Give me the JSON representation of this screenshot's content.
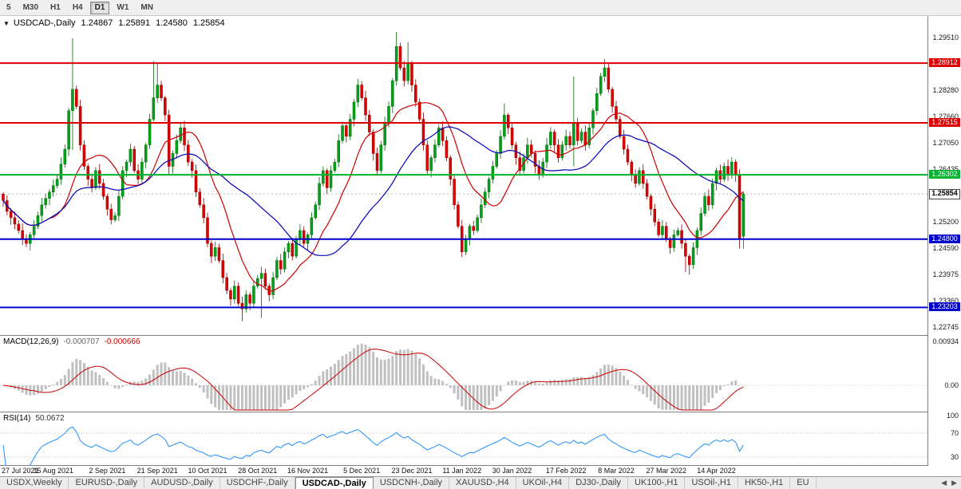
{
  "toolbar": {
    "timeframes": [
      {
        "label": "5",
        "active": false
      },
      {
        "label": "M30",
        "active": false
      },
      {
        "label": "H1",
        "active": false
      },
      {
        "label": "H4",
        "active": false
      },
      {
        "label": "D1",
        "active": true
      },
      {
        "label": "W1",
        "active": false
      },
      {
        "label": "MN",
        "active": false
      }
    ]
  },
  "legend": {
    "symbol": "USDCAD-,Daily"
  },
  "chart_data": {
    "type": "candlestick",
    "symbol": "USDCAD-",
    "timeframe": "Daily",
    "ohlc_current": {
      "open": "1.24867",
      "high": "1.25891",
      "low": "1.24580",
      "close": "1.25854"
    },
    "current_price": {
      "label": "1.25854",
      "price": 1.25854
    },
    "first_open": 1.2585,
    "default_wick": 0.0012,
    "closes": [
      1.257,
      1.2545,
      1.253,
      1.2515,
      1.25,
      1.248,
      1.247,
      1.249,
      1.251,
      1.2535,
      1.256,
      1.2575,
      1.259,
      1.2605,
      1.262,
      1.2655,
      1.269,
      1.278,
      1.283,
      1.279,
      1.27,
      1.265,
      1.262,
      1.26,
      1.264,
      1.261,
      1.258,
      1.255,
      1.2525,
      1.2535,
      1.258,
      1.264,
      1.266,
      1.269,
      1.264,
      1.262,
      1.266,
      1.27,
      1.276,
      1.281,
      1.284,
      1.281,
      1.277,
      1.265,
      1.268,
      1.271,
      1.274,
      1.27,
      1.266,
      1.264,
      1.259,
      1.256,
      1.253,
      1.247,
      1.244,
      1.246,
      1.243,
      1.239,
      1.236,
      1.234,
      1.237,
      1.233,
      1.2317,
      1.235,
      1.233,
      1.237,
      1.2388,
      1.24,
      1.237,
      1.235,
      1.239,
      1.243,
      1.241,
      1.245,
      1.247,
      1.244,
      1.248,
      1.25,
      1.247,
      1.249,
      1.253,
      1.256,
      1.261,
      1.264,
      1.26,
      1.264,
      1.266,
      1.271,
      1.2745,
      1.272,
      1.276,
      1.28,
      1.284,
      1.281,
      1.277,
      1.273,
      1.268,
      1.264,
      1.27,
      1.275,
      1.279,
      1.285,
      1.293,
      1.288,
      1.285,
      1.289,
      1.284,
      1.28,
      1.276,
      1.27,
      1.264,
      1.267,
      1.27,
      1.274,
      1.271,
      1.267,
      1.262,
      1.256,
      1.251,
      1.245,
      1.248,
      1.251,
      1.25,
      1.253,
      1.256,
      1.259,
      1.262,
      1.265,
      1.268,
      1.272,
      1.277,
      1.274,
      1.27,
      1.267,
      1.264,
      1.267,
      1.27,
      1.268,
      1.265,
      1.263,
      1.266,
      1.27,
      1.273,
      1.27,
      1.267,
      1.27,
      1.272,
      1.27,
      1.275,
      1.271,
      1.273,
      1.27,
      1.274,
      1.278,
      1.282,
      1.286,
      1.288,
      1.283,
      1.279,
      1.276,
      1.272,
      1.269,
      1.266,
      1.263,
      1.261,
      1.264,
      1.261,
      1.258,
      1.255,
      1.252,
      1.249,
      1.251,
      1.248,
      1.246,
      1.249,
      1.25,
      1.247,
      1.244,
      1.242,
      1.246,
      1.25,
      1.254,
      1.258,
      1.256,
      1.261,
      1.264,
      1.262,
      1.265,
      1.263,
      1.266,
      1.263,
      1.248,
      1.25854
    ],
    "overrides": {
      "18": {
        "h": 1.2949,
        "l": 1.2688
      },
      "39": {
        "h": 1.2896
      },
      "40": {
        "h": 1.289
      },
      "43": {
        "l": 1.263
      },
      "62": {
        "l": 1.2288
      },
      "67": {
        "l": 1.2296
      },
      "102": {
        "h": 1.2964
      },
      "105": {
        "h": 1.294
      },
      "130": {
        "h": 1.2797
      },
      "148": {
        "h": 1.286,
        "l": 1.265
      },
      "156": {
        "h": 1.2901
      },
      "177": {
        "l": 1.2403
      },
      "178": {
        "l": 1.2397
      },
      "191": {
        "l": 1.2458
      },
      "192": {
        "o": 1.24867,
        "h": 1.25891,
        "l": 1.2458
      }
    },
    "levels": [
      {
        "label": "1.28912",
        "price": 1.28912,
        "color": "#dd0000"
      },
      {
        "label": "1.27515",
        "price": 1.27515,
        "color": "#dd0000"
      },
      {
        "label": "1.26302",
        "price": 1.26302,
        "color": "#00b22d"
      },
      {
        "label": "1.24800",
        "price": 1.248,
        "color": "#0000cc"
      },
      {
        "label": "1.23203",
        "price": 1.23203,
        "color": "#0000cc"
      }
    ],
    "price_ticks": [
      {
        "label": "1.29510",
        "price": 1.2951
      },
      {
        "label": "1.28280",
        "price": 1.2828
      },
      {
        "label": "1.27660",
        "price": 1.2766
      },
      {
        "label": "1.27050",
        "price": 1.2705
      },
      {
        "label": "1.26435",
        "price": 1.26435
      },
      {
        "label": "1.25200",
        "price": 1.252
      },
      {
        "label": "1.24590",
        "price": 1.2459
      },
      {
        "label": "1.23975",
        "price": 1.23975
      },
      {
        "label": "1.23360",
        "price": 1.2336
      },
      {
        "label": "1.22745",
        "price": 1.22745
      }
    ],
    "x_labels": [
      {
        "label": "27 Jul 2021",
        "i": 0
      },
      {
        "label": "15 Aug 2021",
        "i": 13
      },
      {
        "label": "2 Sep 2021",
        "i": 27
      },
      {
        "label": "21 Sep 2021",
        "i": 40
      },
      {
        "label": "10 Oct 2021",
        "i": 53
      },
      {
        "label": "28 Oct 2021",
        "i": 66
      },
      {
        "label": "16 Nov 2021",
        "i": 79
      },
      {
        "label": "5 Dec 2021",
        "i": 93
      },
      {
        "label": "23 Dec 2021",
        "i": 106
      },
      {
        "label": "11 Jan 2022",
        "i": 119
      },
      {
        "label": "30 Jan 2022",
        "i": 132
      },
      {
        "label": "17 Feb 2022",
        "i": 146
      },
      {
        "label": "8 Mar 2022",
        "i": 159
      },
      {
        "label": "27 Mar 2022",
        "i": 172
      },
      {
        "label": "14 Apr 2022",
        "i": 185
      }
    ],
    "ma": [
      {
        "period": 13,
        "color": "#cc0000"
      },
      {
        "period": 34,
        "color": "#0000bb"
      }
    ],
    "macd": {
      "label": "MACD(12,26,9)",
      "value_main": "-0.000707",
      "value_signal": "-0.000666",
      "fast": 12,
      "slow": 26,
      "signal": 9,
      "hist_color": "#c0c0c0",
      "signal_color": "#cc0000",
      "scale_ticks": [
        {
          "label": "0.00934",
          "v": 0.00934
        },
        {
          "label": "0.00",
          "v": 0
        }
      ]
    },
    "rsi": {
      "label": "RSI(14)",
      "value": "50.0672",
      "period": 14,
      "color": "#1e90ff",
      "level_high": 70,
      "level_low": 30,
      "scale_ticks": [
        {
          "label": "100",
          "v": 100
        },
        {
          "label": "70",
          "v": 70
        },
        {
          "label": "30",
          "v": 30
        }
      ]
    },
    "colors": {
      "up_fill": "#00a41c",
      "up_stroke": "#056605",
      "down_fill": "#e00000",
      "down_stroke": "#8b0000"
    }
  },
  "tabbar": {
    "tabs": [
      {
        "label": "USDX,Weekly",
        "active": false
      },
      {
        "label": "EURUSD-,Daily",
        "active": false
      },
      {
        "label": "AUDUSD-,Daily",
        "active": false
      },
      {
        "label": "USDCHF-,Daily",
        "active": false
      },
      {
        "label": "USDCAD-,Daily",
        "active": true
      },
      {
        "label": "USDCNH-,Daily",
        "active": false
      },
      {
        "label": "XAUUSD-,H4",
        "active": false
      },
      {
        "label": "UKOil-,H4",
        "active": false
      },
      {
        "label": "DJ30-,Daily",
        "active": false
      },
      {
        "label": "UK100-,H1",
        "active": false
      },
      {
        "label": "USOil-,H1",
        "active": false
      },
      {
        "label": "HK50-,H1",
        "active": false
      },
      {
        "label": "EU",
        "active": false
      }
    ],
    "scroll_left_icon": "◀",
    "scroll_right_icon": "▶"
  }
}
